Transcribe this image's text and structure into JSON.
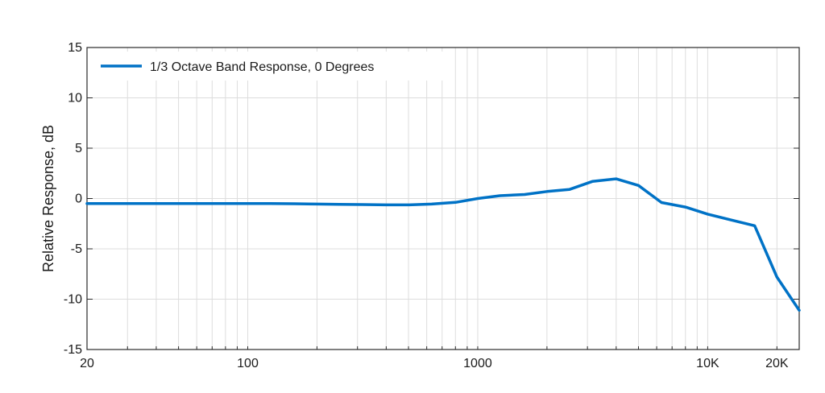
{
  "chart_data": {
    "type": "line",
    "xscale": "log",
    "xlim": [
      20,
      25000
    ],
    "ylim": [
      -15,
      15
    ],
    "xticks": [
      20,
      100,
      1000,
      10000,
      20000
    ],
    "xticklabels": [
      "20",
      "100",
      "1000",
      "10K",
      "20K"
    ],
    "yticks": [
      15,
      10,
      5,
      0,
      -5,
      -10,
      -15
    ],
    "yticklabels": [
      "15",
      "10",
      "5",
      "0",
      "-5",
      "-10",
      "-15"
    ],
    "xlabel": "",
    "ylabel": "Relative Response, dB",
    "grid": true,
    "legend_position": "top-left",
    "series": [
      {
        "name": "1/3 Octave Band Response, 0 Degrees",
        "color": "#0072C6",
        "x": [
          20,
          25,
          31.5,
          40,
          50,
          63,
          80,
          100,
          125,
          160,
          200,
          250,
          315,
          400,
          500,
          630,
          800,
          1000,
          1250,
          1600,
          2000,
          2500,
          3150,
          4000,
          5000,
          6300,
          8000,
          10000,
          12500,
          16000,
          20000,
          25000
        ],
        "y": [
          -0.5,
          -0.5,
          -0.5,
          -0.5,
          -0.5,
          -0.5,
          -0.5,
          -0.5,
          -0.5,
          -0.52,
          -0.55,
          -0.58,
          -0.6,
          -0.63,
          -0.63,
          -0.55,
          -0.38,
          0.0,
          0.28,
          0.4,
          0.7,
          0.9,
          1.7,
          1.95,
          1.3,
          -0.4,
          -0.85,
          -1.55,
          -2.1,
          -2.7,
          -7.8,
          -11.1
        ]
      }
    ]
  }
}
